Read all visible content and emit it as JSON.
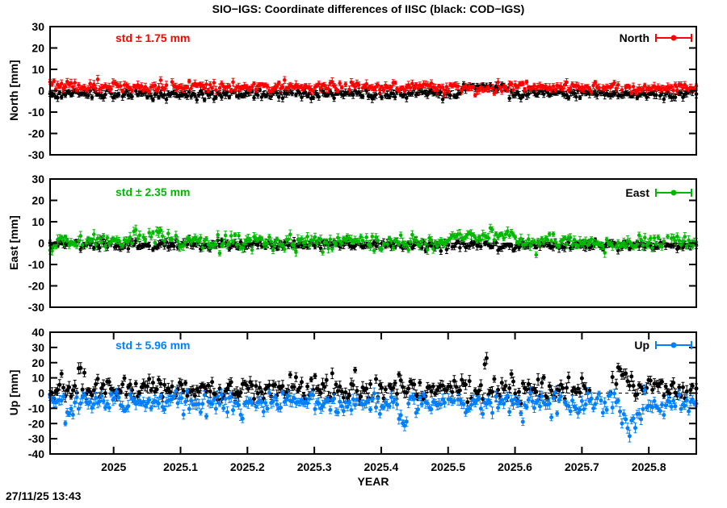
{
  "timestamp": "27/11/25 13:43",
  "chart_data": {
    "type": "scatter",
    "title": "SIO−IGS: Coordinate differences of IISC (black: COD−IGS)",
    "xlabel": "YEAR",
    "x_range": [
      2024.905,
      2025.871
    ],
    "points_per_series": 340,
    "grid": false,
    "zero_line": "dashed",
    "x_ticks": [
      {
        "value": 2025.0,
        "label": "2025"
      },
      {
        "value": 2025.1,
        "label": "2025.1"
      },
      {
        "value": 2025.2,
        "label": "2025.2"
      },
      {
        "value": 2025.3,
        "label": "2025.3"
      },
      {
        "value": 2025.4,
        "label": "2025.4"
      },
      {
        "value": 2025.5,
        "label": "2025.5"
      },
      {
        "value": 2025.6,
        "label": "2025.6"
      },
      {
        "value": 2025.7,
        "label": "2025.7"
      },
      {
        "value": 2025.8,
        "label": "2025.8"
      }
    ],
    "panels": [
      {
        "id": "north",
        "ylabel": "North [mm]",
        "ylim": [
          -30,
          30
        ],
        "ytick_step": 10,
        "std_label": "std ± 1.75 mm",
        "std_value_mm": 1.75,
        "legend_label": "North",
        "accent_color": "#ff0000",
        "show_xtick_marks": false,
        "series": [
          {
            "name": "COD−IGS",
            "color": "#000000",
            "mean": -1.6,
            "sigma": 1.1,
            "errorbar_mm": 1.3,
            "spike_prob": 0,
            "spike_scale": 0,
            "spike_sign": 1,
            "seed": 101,
            "events": [
              {
                "t0": 2025.52,
                "t1": 2025.59,
                "add": 3.4
              }
            ],
            "gaps": []
          },
          {
            "name": "SIO−IGS",
            "color": "#ff0000",
            "mean": 1.9,
            "sigma": 1.1,
            "errorbar_mm": 1.3,
            "spike_prob": 0,
            "spike_scale": 0,
            "spike_sign": 1,
            "seed": 202,
            "events": [
              {
                "t0": 2025.52,
                "t1": 2025.59,
                "add": -1.2
              },
              {
                "t0": 2024.905,
                "t1": 2024.912,
                "add": 2.6
              }
            ],
            "gaps": []
          }
        ]
      },
      {
        "id": "east",
        "ylabel": "East [mm]",
        "ylim": [
          -30,
          30
        ],
        "ytick_step": 10,
        "std_label": "std ± 2.35 mm",
        "std_value_mm": 2.35,
        "legend_label": "East",
        "accent_color": "#00b800",
        "show_xtick_marks": false,
        "series": [
          {
            "name": "COD−IGS",
            "color": "#000000",
            "mean": -0.9,
            "sigma": 1.0,
            "errorbar_mm": 1.3,
            "spike_prob": 0,
            "spike_scale": 0,
            "spike_sign": 1,
            "seed": 303,
            "events": [],
            "gaps": []
          },
          {
            "name": "SIO−IGS",
            "color": "#00b800",
            "mean": 0.7,
            "sigma": 1.6,
            "errorbar_mm": 1.5,
            "spike_prob": 0.06,
            "spike_scale": 2.2,
            "spike_sign": -1,
            "seed": 404,
            "events": [
              {
                "t0": 2025.03,
                "t1": 2025.09,
                "add": 2.6
              },
              {
                "t0": 2025.5,
                "t1": 2025.6,
                "add": 2.2
              },
              {
                "t0": 2025.69,
                "t1": 2025.78,
                "add": -1.8
              },
              {
                "t0": 2024.905,
                "t1": 2024.915,
                "add": -2.8
              }
            ],
            "gaps": []
          }
        ]
      },
      {
        "id": "up",
        "ylabel": "Up [mm]",
        "ylim": [
          -40,
          40
        ],
        "ytick_step": 10,
        "std_label": "std ± 5.96 mm",
        "std_value_mm": 5.96,
        "legend_label": "Up",
        "accent_color": "#0080ff",
        "show_xtick_marks": true,
        "series": [
          {
            "name": "COD−IGS",
            "color": "#000000",
            "mean": 1.6,
            "sigma": 3.1,
            "errorbar_mm": 2.6,
            "spike_prob": 0.2,
            "spike_scale": 5.0,
            "spike_sign": 1,
            "seed": 505,
            "events": [
              {
                "t0": 2025.552,
                "t1": 2025.56,
                "add": 22
              },
              {
                "t0": 2024.945,
                "t1": 2024.952,
                "add": 15
              },
              {
                "t0": 2025.745,
                "t1": 2025.775,
                "add": 8
              }
            ],
            "gaps": [
              {
                "t0": 2025.712,
                "t1": 2025.742
              }
            ]
          },
          {
            "name": "SIO−IGS",
            "color": "#0080ff",
            "mean": -5.5,
            "sigma": 3.0,
            "errorbar_mm": 2.6,
            "spike_prob": 0.2,
            "spike_scale": 4.6,
            "spike_sign": -1,
            "seed": 606,
            "events": [
              {
                "t0": 2025.425,
                "t1": 2025.44,
                "add": -12
              },
              {
                "t0": 2024.925,
                "t1": 2024.94,
                "add": -9
              },
              {
                "t0": 2025.755,
                "t1": 2025.79,
                "add": -11
              }
            ],
            "gaps": []
          }
        ]
      }
    ]
  }
}
